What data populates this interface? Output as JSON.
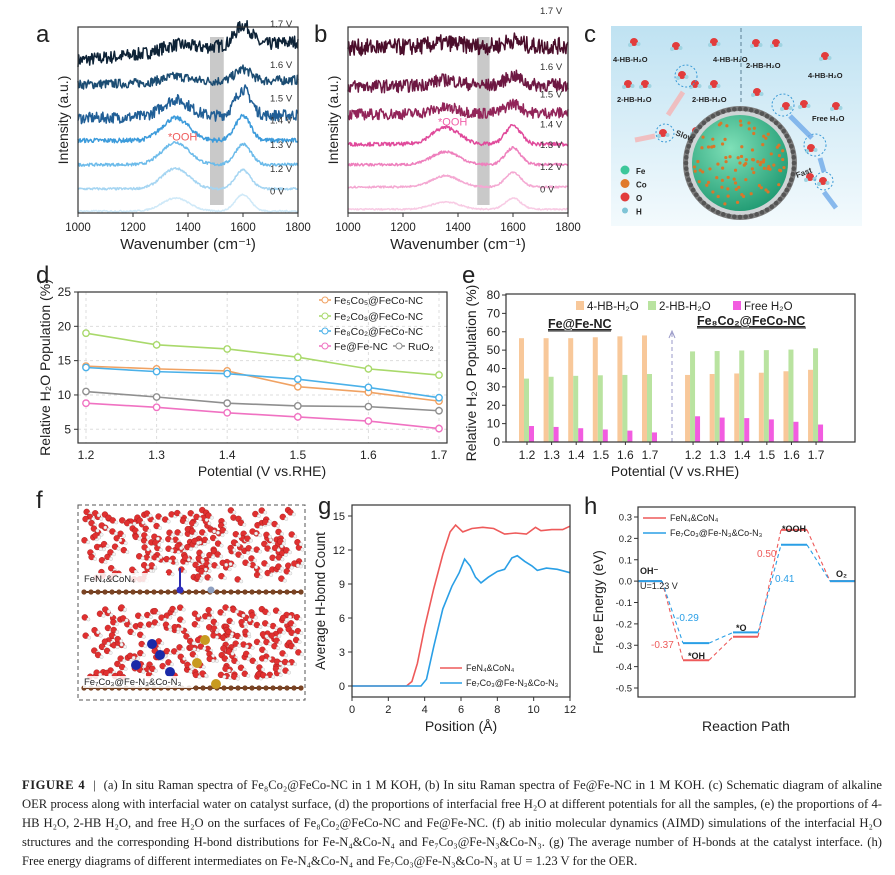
{
  "panels": {
    "a": {
      "letter": "a"
    },
    "b": {
      "letter": "b"
    },
    "c": {
      "letter": "c"
    },
    "d": {
      "letter": "d"
    },
    "e": {
      "letter": "e"
    },
    "f": {
      "letter": "f"
    },
    "g": {
      "letter": "g"
    },
    "h": {
      "letter": "h"
    }
  },
  "chart_data": [
    {
      "id": "a",
      "type": "line",
      "title": "",
      "xlabel": "Wavenumber (cm⁻¹)",
      "ylabel": "Intensity (a.u.)",
      "xlim": [
        1000,
        1800
      ],
      "xticks": [
        "1000",
        "1200",
        "1400",
        "1600",
        "1800"
      ],
      "highlight_band": [
        1480,
        1530
      ],
      "annotation": "*OOH",
      "annotation_x": 1400,
      "series": [
        {
          "name": "1.7 V",
          "offset": 8.2,
          "peak1350": 0.3,
          "peak1600": 1.0,
          "noise": 0.35,
          "trend": 1.2,
          "color": "#0e2337"
        },
        {
          "name": "1.6 V",
          "offset": 6.9,
          "peak1350": 0.3,
          "peak1600": 0.6,
          "noise": 0.25,
          "trend": 0.3,
          "color": "#1b4c72"
        },
        {
          "name": "1.5 V",
          "offset": 5.1,
          "peak1350": 0.9,
          "peak1600": 1.4,
          "noise": 0.3,
          "trend": 0.2,
          "color": "#215f96"
        },
        {
          "name": "1.4 V",
          "offset": 3.9,
          "peak1350": 1.2,
          "peak1600": 1.3,
          "noise": 0.12,
          "trend": 0.0,
          "color": "#3c9bdb"
        },
        {
          "name": "1.3 V",
          "offset": 2.6,
          "peak1350": 1.2,
          "peak1600": 1.1,
          "noise": 0.08,
          "trend": 0.0,
          "color": "#6cbbea"
        },
        {
          "name": "1.2 V",
          "offset": 1.3,
          "peak1350": 1.1,
          "peak1600": 1.0,
          "noise": 0.06,
          "trend": 0.0,
          "color": "#a5d5f2"
        },
        {
          "name": "0 V",
          "offset": 0.1,
          "peak1350": 0.7,
          "peak1600": 0.9,
          "noise": 0.04,
          "trend": 0.0,
          "color": "#cfe9f8"
        }
      ]
    },
    {
      "id": "b",
      "type": "line",
      "xlabel": "Wavenumber (cm⁻¹)",
      "ylabel": "Intensity (a.u.)",
      "xlim": [
        1000,
        1800
      ],
      "xticks": [
        "1000",
        "1200",
        "1400",
        "1600",
        "1800"
      ],
      "highlight_band": [
        1470,
        1515
      ],
      "annotation": "*OOH",
      "annotation_x": 1400,
      "series": [
        {
          "name": "1.7 V",
          "offset": 8.9,
          "peak1350": 0.2,
          "peak1600": 0.3,
          "noise": 0.45,
          "trend": 0.1,
          "color": "#4b0e2b"
        },
        {
          "name": "1.6 V",
          "offset": 6.8,
          "peak1350": 0.3,
          "peak1600": 0.5,
          "noise": 0.35,
          "trend": 0.1,
          "color": "#6d1842"
        },
        {
          "name": "1.5 V",
          "offset": 5.3,
          "peak1350": 0.3,
          "peak1600": 0.5,
          "noise": 0.3,
          "trend": 0.1,
          "color": "#922559"
        },
        {
          "name": "1.4 V",
          "offset": 3.7,
          "peak1350": 0.9,
          "peak1600": 1.0,
          "noise": 0.1,
          "trend": 0.0,
          "color": "#e04a9b"
        },
        {
          "name": "1.3 V",
          "offset": 2.6,
          "peak1350": 0.7,
          "peak1600": 0.9,
          "noise": 0.07,
          "trend": 0.0,
          "color": "#ee80bd"
        },
        {
          "name": "1.2 V",
          "offset": 1.4,
          "peak1350": 0.6,
          "peak1600": 0.8,
          "noise": 0.05,
          "trend": 0.0,
          "color": "#f4a8d2"
        },
        {
          "name": "0 V",
          "offset": 0.2,
          "peak1350": 0.4,
          "peak1600": 0.6,
          "noise": 0.04,
          "trend": 0.0,
          "color": "#f8cbe4"
        }
      ]
    },
    {
      "id": "d",
      "type": "line",
      "xlabel": "Potential (V vs.RHE)",
      "ylabel": "Relative H₂O Population (%)",
      "x": [
        1.2,
        1.3,
        1.4,
        1.5,
        1.6,
        1.7
      ],
      "xticks": [
        "1.2",
        "1.3",
        "1.4",
        "1.5",
        "1.6",
        "1.7"
      ],
      "ylim": [
        3,
        25
      ],
      "yticks": [
        "5",
        "10",
        "15",
        "20",
        "25"
      ],
      "grid": true,
      "legend": "top-right",
      "series": [
        {
          "name": "Fe₅Co₅@FeCo-NC",
          "color": "#f0a263",
          "values": [
            14.2,
            13.8,
            13.5,
            11.2,
            10.4,
            9.1
          ]
        },
        {
          "name": "Fe₂Co₈@FeCo-NC",
          "color": "#a9d96b",
          "values": [
            19.0,
            17.3,
            16.7,
            15.5,
            13.8,
            12.9
          ]
        },
        {
          "name": "Fe₈Co₂@FeCo-NC",
          "color": "#4bb1e9",
          "values": [
            14.0,
            13.4,
            13.1,
            12.3,
            11.1,
            9.6
          ]
        },
        {
          "name": "Fe@Fe-NC",
          "color": "#f072c2",
          "values": [
            8.8,
            8.2,
            7.4,
            6.8,
            6.2,
            5.1
          ]
        },
        {
          "name": "RuO₂",
          "color": "#8f8f8f",
          "values": [
            10.5,
            9.7,
            8.8,
            8.4,
            8.3,
            7.7
          ]
        }
      ]
    },
    {
      "id": "e",
      "type": "bar",
      "xlabel": "Potential (V vs.RHE)",
      "ylabel": "Relative H₂O Population (%)",
      "ylim": [
        0,
        80
      ],
      "yticks": [
        "0",
        "10",
        "20",
        "30",
        "40",
        "50",
        "60",
        "70",
        "80"
      ],
      "legend": "top",
      "series_names": [
        "4-HB-H₂O",
        "2-HB-H₂O",
        "Free H₂O"
      ],
      "series_colors": [
        "#f8c89a",
        "#b9e3a0",
        "#f25ce0"
      ],
      "groups": [
        {
          "name": "Fe@Fe-NC",
          "categories": [
            "1.2",
            "1.3",
            "1.4",
            "1.5",
            "1.6",
            "1.7"
          ],
          "values": [
            [
              56.5,
              56.5,
              56.5,
              57.0,
              57.5,
              58.0
            ],
            [
              34.5,
              35.5,
              36.0,
              36.3,
              36.5,
              37.0
            ],
            [
              8.7,
              8.2,
              7.5,
              6.8,
              6.2,
              5.2
            ]
          ]
        },
        {
          "name": "Fe₈Co₂@FeCo-NC",
          "categories": [
            "1.2",
            "1.3",
            "1.4",
            "1.5",
            "1.6",
            "1.7"
          ],
          "values": [
            [
              36.5,
              37.0,
              37.3,
              37.7,
              38.5,
              39.3
            ],
            [
              49.3,
              49.5,
              49.8,
              50.0,
              50.3,
              51.0
            ],
            [
              14.0,
              13.3,
              13.0,
              12.3,
              11.0,
              9.5
            ]
          ]
        }
      ]
    },
    {
      "id": "g",
      "type": "line",
      "xlabel": "Position (Å)",
      "ylabel": "Average H-bond Count",
      "xlim": [
        0,
        12
      ],
      "ylim": [
        -1,
        16
      ],
      "xticks": [
        "0",
        "2",
        "4",
        "6",
        "8",
        "10",
        "12"
      ],
      "yticks": [
        "0",
        "3",
        "6",
        "9",
        "12",
        "15"
      ],
      "legend": "bottom-right",
      "series": [
        {
          "name": "FeN₄&CoN₄",
          "color": "#ee5a5a",
          "points": [
            [
              0,
              0
            ],
            [
              3.0,
              0
            ],
            [
              3.3,
              0.4
            ],
            [
              3.6,
              2
            ],
            [
              4.0,
              5.2
            ],
            [
              4.5,
              8.6
            ],
            [
              5.0,
              11.6
            ],
            [
              5.4,
              13.6
            ],
            [
              5.7,
              14.2
            ],
            [
              6.1,
              13.6
            ],
            [
              6.6,
              13.9
            ],
            [
              7.2,
              14.0
            ],
            [
              7.8,
              13.9
            ],
            [
              8.4,
              13.4
            ],
            [
              9.0,
              13.5
            ],
            [
              9.6,
              13.4
            ],
            [
              10.1,
              14.0
            ],
            [
              10.4,
              13.7
            ],
            [
              11.0,
              13.8
            ],
            [
              11.6,
              13.8
            ],
            [
              12.0,
              14.1
            ]
          ]
        },
        {
          "name": "Fe₇Co₃@Fe-N₃&Co-N₃",
          "color": "#2a9fe6",
          "points": [
            [
              0,
              0
            ],
            [
              3.8,
              0
            ],
            [
              4.1,
              0.6
            ],
            [
              4.5,
              3.5
            ],
            [
              5.0,
              6.8
            ],
            [
              5.5,
              8.8
            ],
            [
              5.9,
              10.0
            ],
            [
              6.2,
              11.2
            ],
            [
              6.5,
              10.6
            ],
            [
              6.8,
              9.6
            ],
            [
              7.1,
              9.1
            ],
            [
              7.5,
              9.6
            ],
            [
              8.0,
              10.1
            ],
            [
              8.4,
              10.3
            ],
            [
              8.8,
              11.3
            ],
            [
              9.1,
              11.5
            ],
            [
              9.5,
              11.0
            ],
            [
              9.9,
              10.6
            ],
            [
              10.2,
              10.2
            ],
            [
              10.7,
              10.4
            ],
            [
              11.3,
              10.3
            ],
            [
              12.0,
              10.0
            ]
          ]
        }
      ]
    },
    {
      "id": "h",
      "type": "line",
      "xlabel": "Reaction Path",
      "ylabel": "Free Energy (eV)",
      "ylim": [
        -0.55,
        0.35
      ],
      "yticks": [
        "0.3",
        "0.2",
        "0.1",
        "0.0",
        "-0.1",
        "-0.2",
        "-0.3",
        "-0.4",
        "-0.5"
      ],
      "legend": "top-left",
      "steps": [
        "OH⁻",
        "*OH",
        "*O",
        "*OOH",
        "O₂"
      ],
      "annotation": "U=1.23 V",
      "series": [
        {
          "name": "FeN₄&CoN₄",
          "color": "#ee5a5a",
          "values": [
            0.0,
            -0.37,
            -0.26,
            0.24,
            0.0
          ],
          "labels": [
            "-0.37",
            "0.50"
          ]
        },
        {
          "name": "Fe₇Co₃@Fe-N₃&Co-N₃",
          "color": "#2a9fe6",
          "values": [
            0.0,
            -0.29,
            -0.24,
            0.17,
            0.0
          ],
          "labels": [
            "-0.29",
            "0.41"
          ]
        }
      ]
    }
  ],
  "panel_c": {
    "labels": [
      "4-HB-H₂O",
      "4-HB-H₂O",
      "2-HB-H₂O",
      "4-HB-H₂O",
      "2-HB-H₂O",
      "2-HB-H₂O",
      "Free H₂O"
    ],
    "slow": "Slow",
    "fast": "Fast",
    "legend": [
      {
        "name": "Fe",
        "color": "#3cc79a"
      },
      {
        "name": "Co",
        "color": "#e07a2c"
      },
      {
        "name": "O",
        "color": "#e23c3c"
      },
      {
        "name": "H",
        "color": "#7fc4d6"
      }
    ]
  },
  "panel_f": {
    "top_label": "FeN₄&CoN₄",
    "bottom_label": "Fe₇Co₃@Fe-N₃&Co-N₃"
  },
  "caption": {
    "figure_label": "FIGURE 4",
    "separator": "|",
    "text": "(a) In situ Raman spectra of Fe₈Co₂@FeCo-NC in 1 M KOH, (b) In situ Raman spectra of Fe@Fe-NC in 1 M KOH. (c) Schematic diagram of alkaline OER process along with interfacial water on catalyst surface, (d) the proportions of interfacial free H₂O at different potentials for all the samples, (e) the proportions of 4-HB H₂O, 2-HB H₂O, and free H₂O on the surfaces of Fe₈Co₂@FeCo-NC and Fe@Fe-NC. (f) ab initio molecular dynamics (AIMD) simulations of the interfacial H₂O structures and the corresponding H-bond distributions for Fe-N₄&Co-N₄ and Fe₇Co₃@Fe-N₃&Co-N₃. (g) The average number of H-bonds at the catalyst interface. (h) Free energy diagrams of different intermediates on Fe-N₄&Co-N₄ and Fe₇Co₃@Fe-N₃&Co-N₃ at U = 1.23 V for the OER."
  }
}
